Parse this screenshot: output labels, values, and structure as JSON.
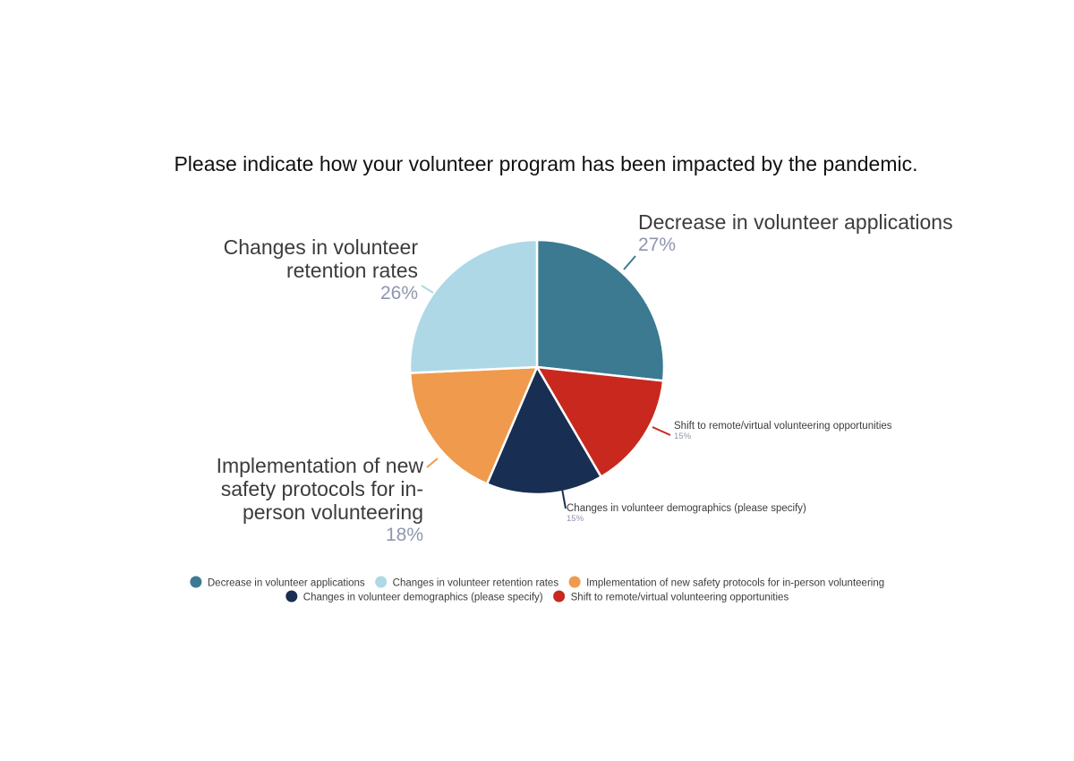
{
  "chart_data": {
    "type": "pie",
    "title": "Please indicate how your volunteer program has been impacted by the pandemic.",
    "slices": [
      {
        "label": "Decrease in volunteer applications",
        "value": 27,
        "pct_label": "27%",
        "color": "#3b7a91"
      },
      {
        "label": "Shift to remote/virtual volunteering opportunities",
        "value": 15,
        "pct_label": "15%",
        "color": "#c8281e"
      },
      {
        "label": "Changes in volunteer demographics (please specify)",
        "value": 15,
        "pct_label": "15%",
        "color": "#182e52"
      },
      {
        "label": "Implementation of new safety protocols for in-person volunteering",
        "value": 18,
        "pct_label": "18%",
        "color": "#ef9a4c"
      },
      {
        "label": "Changes in volunteer retention rates",
        "value": 26,
        "pct_label": "26%",
        "color": "#aed8e6"
      }
    ],
    "callouts": [
      {
        "lines": [
          "Decrease in volunteer applications"
        ],
        "pct": "27%"
      },
      {
        "lines": [
          "Shift to remote/virtual volunteering opportunities"
        ],
        "pct": "15%"
      },
      {
        "lines": [
          "Changes in volunteer demographics (please specify)"
        ],
        "pct": "15%"
      },
      {
        "lines": [
          "Implementation of new",
          "safety protocols for in-",
          "person volunteering"
        ],
        "pct": "18%"
      },
      {
        "lines": [
          "Changes in volunteer",
          "retention rates"
        ],
        "pct": "26%"
      }
    ],
    "legend": {
      "position": "bottom",
      "items": [
        {
          "label": "Decrease in volunteer applications",
          "color": "#3b7a91"
        },
        {
          "label": "Changes in volunteer retention rates",
          "color": "#aed8e6"
        },
        {
          "label": "Implementation of new safety protocols for in-person volunteering",
          "color": "#ef9a4c"
        },
        {
          "label": "Changes in volunteer demographics (please specify)",
          "color": "#182e52"
        },
        {
          "label": "Shift to remote/virtual volunteering opportunities",
          "color": "#c8281e"
        }
      ]
    }
  }
}
